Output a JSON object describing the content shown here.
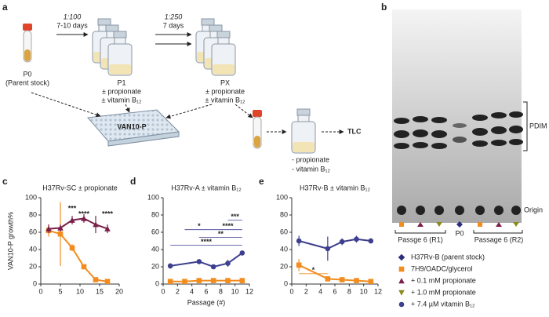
{
  "panel_labels": [
    "a",
    "b",
    "c",
    "d",
    "e"
  ],
  "diagram": {
    "step1_ratio": "1:100",
    "step1_time": "7-10 days",
    "step2_ratio": "1:250",
    "step2_time": "7 days",
    "p0": "P0",
    "p0_note": "(Parent stock)",
    "p1": "P1",
    "p1_cond1": "± propionate",
    "p1_cond2": "± vitamin B₁₂",
    "px": "PX",
    "px_cond1": "± propionate",
    "px_cond2": "± vitamin B₁₂",
    "plate": "VAN10-P",
    "tlc_cond1": "- propionate",
    "tlc_cond2": "- vitamin B₁₂",
    "tlc": "TLC"
  },
  "tlc": {
    "pdim": "PDIM",
    "origin": "Origin",
    "groups": [
      "Passge 6 (R1)",
      "P0",
      "Passage 6 (R2)"
    ]
  },
  "chart_data": [
    {
      "type": "line",
      "title": "H37Rv-SC ± propionate",
      "ylabel": "VAN10-P growth%",
      "xlim": [
        0,
        20
      ],
      "xticks": [
        0,
        5,
        10,
        15,
        20
      ],
      "ylim": [
        0,
        100
      ],
      "yticks": [
        0,
        20,
        40,
        60,
        80,
        100
      ],
      "annotation_color": "#111111",
      "series": [
        {
          "name": "7H9/OADC/glycerol",
          "color": "#f28c1e",
          "marker": "square",
          "x": [
            2,
            5,
            8,
            11,
            14,
            17
          ],
          "values": [
            62,
            58,
            42,
            20,
            5,
            3
          ],
          "errors": [
            7,
            37,
            4,
            2,
            1,
            1
          ]
        },
        {
          "name": "+ 0.1 mM propionate",
          "color": "#7a1f4a",
          "marker": "triangle",
          "x": [
            2,
            5,
            8,
            11,
            14,
            17
          ],
          "values": [
            64,
            65,
            74,
            76,
            69,
            64
          ],
          "errors": [
            5,
            4,
            5,
            5,
            10,
            5
          ]
        }
      ],
      "annotations": [
        {
          "text": "***",
          "x": 8,
          "y": 87
        },
        {
          "text": "****",
          "x": 11,
          "y": 81
        },
        {
          "text": "****",
          "x": 17,
          "y": 81
        }
      ]
    },
    {
      "type": "line",
      "title": "H37Rv-A ± vitamin B₁₂",
      "xlabel": "Passage (#)",
      "xlim": [
        0,
        12
      ],
      "xticks": [
        0,
        2,
        4,
        6,
        8,
        10,
        12
      ],
      "ylim": [
        0,
        100
      ],
      "yticks": [
        0,
        20,
        40,
        60,
        80,
        100
      ],
      "annotation_color": "#3d3f8f",
      "series": [
        {
          "name": "+ 7.4 µM vitamin B₁₂",
          "color": "#3d3f8f",
          "marker": "circle",
          "x": [
            1,
            5,
            7,
            9,
            11
          ],
          "values": [
            21,
            26,
            20,
            24,
            36
          ],
          "errors": [
            3,
            1,
            1,
            4,
            2
          ]
        },
        {
          "name": "7H9/OADC/glycerol",
          "color": "#f28c1e",
          "marker": "square",
          "x": [
            1,
            3,
            5,
            7,
            9,
            11
          ],
          "values": [
            3,
            3,
            4,
            4,
            4,
            4
          ],
          "errors": [
            1,
            1,
            1,
            1,
            1,
            1
          ]
        }
      ],
      "brackets": [
        {
          "text": "***",
          "x1": 9,
          "x2": 11,
          "y": 74
        },
        {
          "text": "*",
          "x1": 3,
          "x2": 7,
          "y": 63
        },
        {
          "text": "****",
          "x1": 7,
          "x2": 11,
          "y": 63
        },
        {
          "text": "**",
          "x1": 5,
          "x2": 11,
          "y": 54
        },
        {
          "text": "****",
          "x1": 1,
          "x2": 11,
          "y": 45
        }
      ]
    },
    {
      "type": "line",
      "title": "H37Rv-B ± vitamin B₁₂",
      "xlim": [
        0,
        12
      ],
      "xticks": [
        0,
        2,
        4,
        6,
        8,
        10,
        12
      ],
      "ylim": [
        0,
        100
      ],
      "yticks": [
        0,
        20,
        40,
        60,
        80,
        100
      ],
      "annotation_color": "#f28c1e",
      "series": [
        {
          "name": "+ 7.4 µM vitamin B₁₂",
          "color": "#3d3f8f",
          "marker": "circle",
          "x": [
            1,
            5,
            7,
            9,
            11
          ],
          "values": [
            50,
            41,
            49,
            52,
            50
          ],
          "errors": [
            6,
            14,
            4,
            4,
            3
          ]
        },
        {
          "name": "7H9/OADC/glycerol",
          "color": "#f28c1e",
          "marker": "square",
          "x": [
            1,
            5,
            7,
            9,
            11
          ],
          "values": [
            22,
            6,
            5,
            4,
            3
          ],
          "errors": [
            7,
            1,
            1,
            1,
            1
          ]
        }
      ],
      "brackets": [
        {
          "text": "*",
          "x1": 1,
          "x2": 5,
          "y": 12
        }
      ]
    }
  ],
  "legend": [
    {
      "label": "H37Rv-B (parent stock)",
      "color": "#2c2f7a",
      "marker": "diamond"
    },
    {
      "label": "7H9/OADC/glycerol",
      "color": "#f28c1e",
      "marker": "square"
    },
    {
      "label": "+ 0.1 mM propionate",
      "color": "#7a1f4a",
      "marker": "triangle"
    },
    {
      "label": "+ 1.0 mM propionate",
      "color": "#8b8a1e",
      "marker": "triangle-down"
    },
    {
      "label": "+ 7.4 µM vitamin B₁₂",
      "color": "#3d3f8f",
      "marker": "circle"
    }
  ]
}
